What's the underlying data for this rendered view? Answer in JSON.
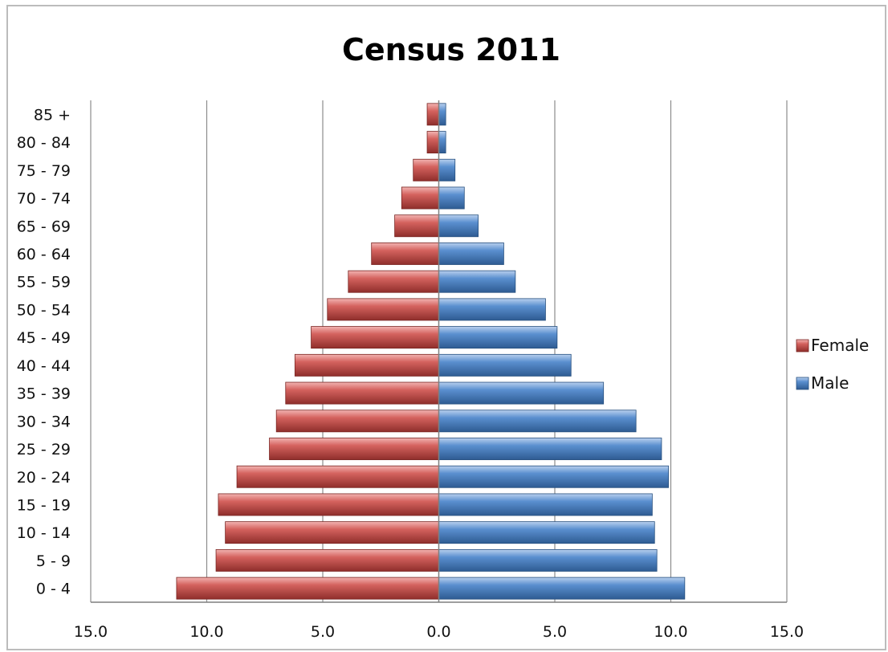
{
  "chart_data": {
    "type": "bar",
    "orientation": "horizontal",
    "layout": "population-pyramid",
    "title": "Census 2011",
    "categories": [
      "0 - 4",
      "5 - 9",
      "10 - 14",
      "15 - 19",
      "20 - 24",
      "25 - 29",
      "30 - 34",
      "35 - 39",
      "40 - 44",
      "45 - 49",
      "50 - 54",
      "55 - 59",
      "60 - 64",
      "65 - 69",
      "70 - 74",
      "75 - 79",
      "80 - 84",
      "85 +"
    ],
    "series": [
      {
        "name": "Female",
        "side": "left",
        "color": "#c0504d",
        "values": [
          11.3,
          9.6,
          9.2,
          9.5,
          8.7,
          7.3,
          7.0,
          6.6,
          6.2,
          5.5,
          4.8,
          3.9,
          2.9,
          1.9,
          1.6,
          1.1,
          0.5,
          0.5
        ]
      },
      {
        "name": "Male",
        "side": "right",
        "color": "#4f81bd",
        "values": [
          10.6,
          9.4,
          9.3,
          9.2,
          9.9,
          9.6,
          8.5,
          7.1,
          5.7,
          5.1,
          4.6,
          3.3,
          2.8,
          1.7,
          1.1,
          0.7,
          0.3,
          0.3
        ]
      }
    ],
    "xlim": [
      -15,
      15
    ],
    "x_ticks": [
      -15,
      -10,
      -5,
      0,
      5,
      10,
      15
    ],
    "x_tick_labels": [
      "15.0",
      "10.0",
      "5.0",
      "0.0",
      "5.0",
      "10.0",
      "15.0"
    ],
    "grid": "vertical",
    "legend_position": "right",
    "legend": [
      "Female",
      "Male"
    ]
  }
}
